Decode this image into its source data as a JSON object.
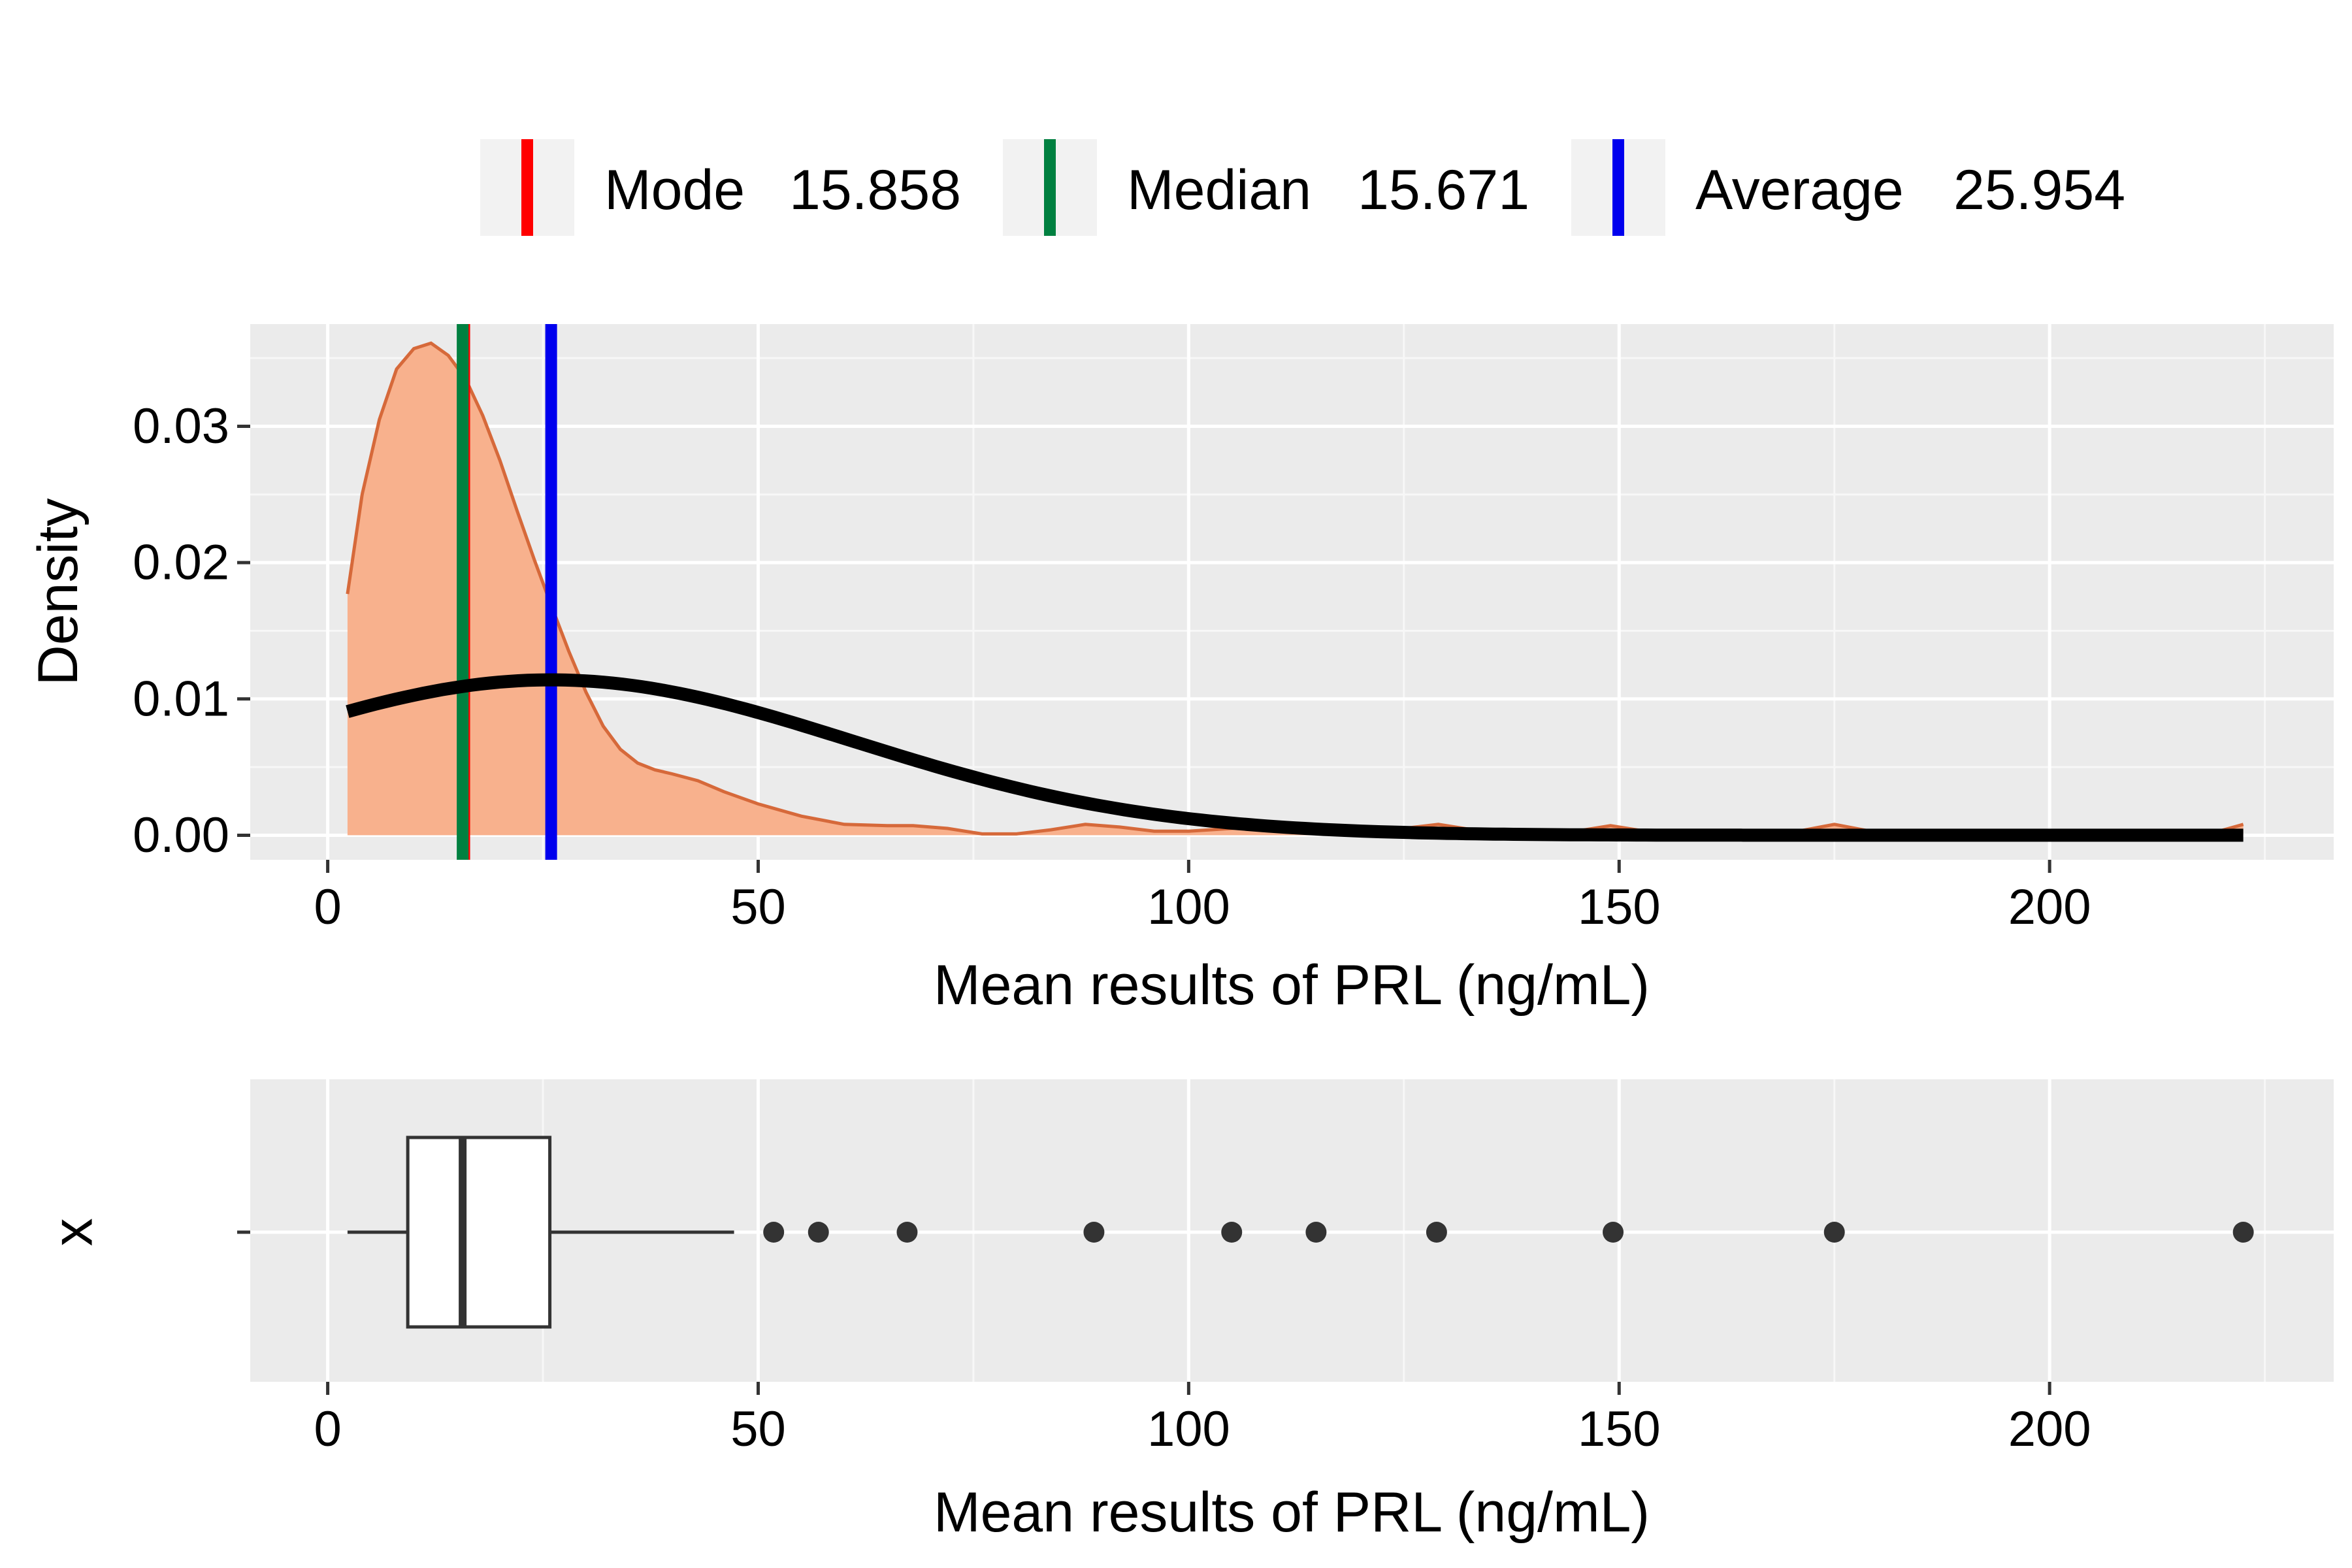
{
  "chart_data": [
    {
      "type": "area",
      "xlabel": "Mean results of PRL (ng/mL)",
      "ylabel": "Density",
      "xlim": [
        -9,
        233
      ],
      "ylim": [
        -0.0018,
        0.0375
      ],
      "x_ticks": [
        0,
        50,
        100,
        150,
        200
      ],
      "y_ticks": [
        0.0,
        0.01,
        0.02,
        0.03
      ],
      "x_tick_labels": [
        "0",
        "50",
        "100",
        "150",
        "200"
      ],
      "y_tick_labels": [
        "0.00",
        "0.01",
        "0.02",
        "0.03"
      ],
      "grid": true,
      "legend_position": "top",
      "legend": [
        {
          "label": "Mode",
          "value": "15.858",
          "color": "#ff0000"
        },
        {
          "label": "Median",
          "value": "15.671",
          "color": "#008040"
        },
        {
          "label": "Average",
          "value": "25.954",
          "color": "#0000ee"
        }
      ],
      "vlines": [
        {
          "x": 15.858,
          "color": "#ff0000"
        },
        {
          "x": 15.671,
          "color": "#008040"
        },
        {
          "x": 25.954,
          "color": "#0000ee"
        }
      ],
      "series": [
        {
          "kind": "density-area",
          "fill": "#f8b18d",
          "stroke": "#d6693a",
          "points": [
            [
              2.3,
              0.0177
            ],
            [
              4,
              0.025
            ],
            [
              6,
              0.0305
            ],
            [
              8,
              0.0342
            ],
            [
              10,
              0.0357
            ],
            [
              12,
              0.0361
            ],
            [
              14,
              0.0352
            ],
            [
              16,
              0.0335
            ],
            [
              18,
              0.0308
            ],
            [
              20,
              0.0275
            ],
            [
              22,
              0.0238
            ],
            [
              24,
              0.0202
            ],
            [
              26,
              0.0168
            ],
            [
              28,
              0.0135
            ],
            [
              30,
              0.0105
            ],
            [
              32,
              0.008
            ],
            [
              34,
              0.0063
            ],
            [
              36,
              0.0053
            ],
            [
              38,
              0.0048
            ],
            [
              40,
              0.0045
            ],
            [
              43,
              0.004
            ],
            [
              46,
              0.0032
            ],
            [
              50,
              0.0023
            ],
            [
              55,
              0.0014
            ],
            [
              60,
              0.0008
            ],
            [
              65,
              0.0007
            ],
            [
              68,
              0.0007
            ],
            [
              72,
              0.0005
            ],
            [
              76,
              0.0001
            ],
            [
              80,
              0.0001
            ],
            [
              84,
              0.0004
            ],
            [
              88,
              0.0008
            ],
            [
              92,
              0.0006
            ],
            [
              96,
              0.0003
            ],
            [
              100,
              0.0003
            ],
            [
              105,
              0.0005
            ],
            [
              110,
              0.0007
            ],
            [
              115,
              0.0007
            ],
            [
              120,
              0.0004
            ],
            [
              125,
              0.0005
            ],
            [
              129,
              0.0008
            ],
            [
              133,
              0.0004
            ],
            [
              138,
              0.0001
            ],
            [
              144,
              0.0002
            ],
            [
              149,
              0.0007
            ],
            [
              154,
              0.0002
            ],
            [
              160,
              0.0
            ],
            [
              170,
              0.0002
            ],
            [
              175,
              0.0008
            ],
            [
              180,
              0.0002
            ],
            [
              190,
              0.0
            ],
            [
              210,
              0.0
            ],
            [
              218,
              0.0
            ],
            [
              222.5,
              0.0008
            ]
          ]
        },
        {
          "kind": "normal-curve",
          "stroke": "#000000",
          "mean": 25.954,
          "sd": 35,
          "x_range": [
            2.3,
            222.5
          ]
        }
      ]
    },
    {
      "type": "box",
      "xlabel": "Mean results of PRL (ng/mL)",
      "ylabel": "x",
      "xlim": [
        -9,
        233
      ],
      "x_ticks": [
        0,
        50,
        100,
        150,
        200
      ],
      "x_tick_labels": [
        "0",
        "50",
        "100",
        "150",
        "200"
      ],
      "grid": true,
      "box": {
        "whisker_low": 2.3,
        "q1": 9.3,
        "median": 15.671,
        "q3": 25.8,
        "whisker_high": 47.2,
        "fill": "#ffffff",
        "stroke": "#333333"
      },
      "outliers": [
        51.8,
        57,
        67.3,
        89,
        105,
        114.8,
        128.8,
        149.3,
        175,
        222.5
      ]
    }
  ]
}
